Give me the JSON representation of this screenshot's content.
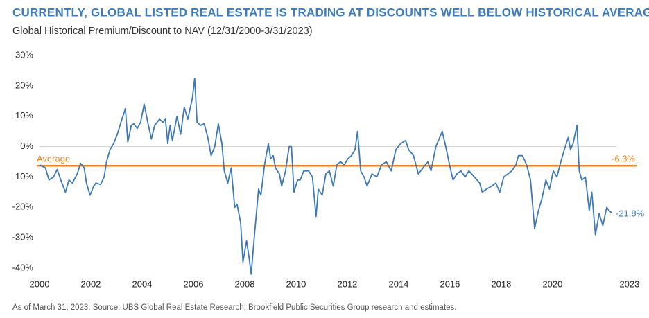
{
  "chart_data": {
    "type": "line",
    "title": "CURRENTLY, GLOBAL LISTED REAL ESTATE IS TRADING AT DISCOUNTS WELL BELOW HISTORICAL AVERAGES",
    "subtitle": "Global Historical Premium/Discount to NAV (12/31/2000-3/31/2023)",
    "source": "As of March 31, 2023. Source: UBS Global Real Estate Research; Brookfield Public Securities Group research and estimates.",
    "xlim": [
      2000,
      2023.3
    ],
    "xticks": [
      2000,
      2002,
      2004,
      2006,
      2008,
      2010,
      2012,
      2014,
      2016,
      2018,
      2020,
      2023
    ],
    "ylim": [
      -40,
      30
    ],
    "yticks": [
      {
        "value": 30,
        "label": "30%"
      },
      {
        "value": 20,
        "label": "20%"
      },
      {
        "value": 10,
        "label": "10%"
      },
      {
        "value": 0,
        "label": "0%"
      },
      {
        "value": -10,
        "label": "-10%"
      },
      {
        "value": -20,
        "label": "-20%"
      },
      {
        "value": -30,
        "label": "-30%"
      },
      {
        "value": -40,
        "label": "-40%"
      }
    ],
    "zero_line": true,
    "average": {
      "name": "Average",
      "value": -6.3,
      "label": "-6.3%",
      "color": "#f0821e"
    },
    "last_value_label": "-21.8%",
    "series": [
      {
        "color": "#3d78b8",
        "x": [
          2000,
          2000.23,
          2000.37,
          2000.55,
          2000.69,
          2000.83,
          2001.01,
          2001.15,
          2001.28,
          2001.47,
          2001.6,
          2001.74,
          2001.83,
          2001.97,
          2002.11,
          2002.2,
          2002.38,
          2002.52,
          2002.61,
          2002.75,
          2002.89,
          2003.03,
          2003.21,
          2003.35,
          2003.44,
          2003.58,
          2003.67,
          2003.81,
          2003.94,
          2004.08,
          2004.22,
          2004.36,
          2004.49,
          2004.68,
          2004.81,
          2004.91,
          2005.0,
          2005.09,
          2005.18,
          2005.36,
          2005.5,
          2005.64,
          2005.78,
          2005.96,
          2006.05,
          2006.14,
          2006.28,
          2006.42,
          2006.56,
          2006.69,
          2006.83,
          2006.97,
          2007.11,
          2007.2,
          2007.34,
          2007.47,
          2007.61,
          2007.7,
          2007.84,
          2007.93,
          2008.07,
          2008.16,
          2008.25,
          2008.39,
          2008.54,
          2008.63,
          2008.77,
          2008.92,
          2009.01,
          2009.11,
          2009.2,
          2009.35,
          2009.44,
          2009.59,
          2009.73,
          2009.82,
          2009.92,
          2010.06,
          2010.16,
          2010.3,
          2010.49,
          2010.64,
          2010.78,
          2010.87,
          2011.02,
          2011.16,
          2011.3,
          2011.45,
          2011.59,
          2011.73,
          2011.88,
          2012.02,
          2012.16,
          2012.3,
          2012.4,
          2012.52,
          2012.65,
          2012.77,
          2012.96,
          2013.15,
          2013.33,
          2013.52,
          2013.71,
          2013.89,
          2014.08,
          2014.27,
          2014.39,
          2014.58,
          2014.77,
          2014.95,
          2015.14,
          2015.26,
          2015.45,
          2015.7,
          2015.86,
          2016.01,
          2016.12,
          2016.27,
          2016.43,
          2016.59,
          2016.74,
          2016.95,
          2017.16,
          2017.26,
          2017.42,
          2017.63,
          2017.79,
          2017.94,
          2018.1,
          2018.26,
          2018.41,
          2018.57,
          2018.67,
          2018.83,
          2018.99,
          2019.14,
          2019.3,
          2019.45,
          2019.59,
          2019.74,
          2019.88,
          2020.03,
          2020.17,
          2020.32,
          2020.46,
          2020.61,
          2020.7,
          2020.8,
          2020.95,
          2021.04,
          2021.14,
          2021.28,
          2021.43,
          2021.53,
          2021.67,
          2021.82,
          2021.96,
          2022.11,
          2022.2,
          2022.3
        ],
        "values": [
          -6,
          -7,
          -11,
          -10,
          -7.5,
          -11,
          -15,
          -11,
          -12,
          -9,
          -5.5,
          -7,
          -12,
          -16,
          -13,
          -12,
          -12.5,
          -10,
          -5,
          -1,
          1,
          4,
          9,
          12.5,
          1.5,
          7,
          7.5,
          6,
          8,
          14,
          8,
          2.5,
          7,
          9,
          8,
          9,
          1,
          7,
          2,
          10,
          4,
          13,
          9,
          16,
          22.5,
          8,
          7,
          7.5,
          3,
          -3,
          0,
          7.5,
          1,
          -8,
          -12,
          -7,
          -20,
          -19,
          -25,
          -38,
          -31,
          -36,
          -42,
          -28,
          -14,
          -16,
          -6,
          1,
          -4,
          -3,
          -7,
          -9,
          -13,
          -8,
          0,
          0,
          -15,
          -11,
          -11,
          -8,
          -8,
          -10,
          -23,
          -14,
          -16,
          -9,
          -8,
          -13,
          -6,
          -5,
          -6,
          -4,
          -3,
          -1,
          5,
          -8,
          -10,
          -13,
          -9,
          -10,
          -6,
          -5,
          -8,
          -1,
          1,
          2,
          -1,
          -3,
          -9,
          -7,
          -5,
          -8,
          0,
          5,
          -1,
          -7,
          -11,
          -9,
          -8,
          -10,
          -8,
          -10,
          -12,
          -15,
          -14,
          -13,
          -12,
          -15,
          -10,
          -9,
          -8,
          -6,
          -3,
          -3,
          -6,
          -11,
          -27,
          -21,
          -17,
          -11,
          -14,
          -8,
          -10,
          -5,
          -1,
          3,
          -1,
          1,
          7,
          -8,
          -11,
          -10,
          -21,
          -15,
          -29,
          -22,
          -26,
          -20,
          -21,
          -21.8
        ]
      }
    ]
  }
}
